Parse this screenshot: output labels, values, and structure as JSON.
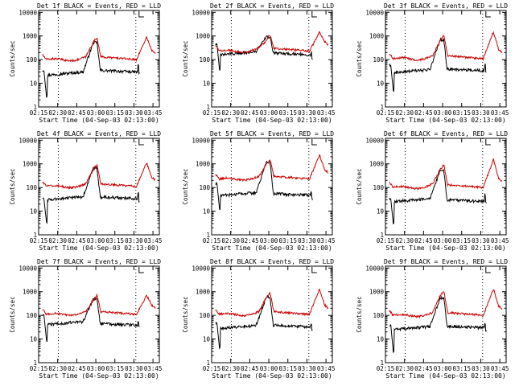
{
  "chart_data": [
    {
      "type": "line",
      "title": "Det 1f BLACK = Events, RED = LLD",
      "xlabel": "Start Time (04-Sep-03 02:13:00)",
      "ylabel": "Counts/sec",
      "xlim": [
        15,
        110
      ],
      "ylim": [
        1,
        12000
      ],
      "yscale": "log",
      "x_ticks": [
        15,
        30,
        45,
        60,
        75,
        90,
        105
      ],
      "x_tick_labels": [
        "02:15",
        "02:30",
        "02:45",
        "03:00",
        "03:15",
        "03:30",
        "03:45"
      ],
      "y_ticks": [
        1,
        10,
        100,
        1000,
        10000
      ],
      "y_tick_labels": [
        "1",
        "10",
        "100",
        "1000",
        "10000"
      ],
      "markers": [
        30.5,
        91.5
      ],
      "series": [
        {
          "name": "Events",
          "color": "#000000",
          "params": {
            "base": 35,
            "pre": 22,
            "dip": 3,
            "flare": 520,
            "endv": 55
          }
        },
        {
          "name": "LLD",
          "color": "#cc0000",
          "params": {
            "base": 100,
            "pre": 130,
            "flare": 850,
            "peak": 900
          }
        }
      ]
    },
    {
      "type": "line",
      "title": "Det 2f BLACK = Events, RED = LLD",
      "xlabel": "Start Time (04-Sep-03 02:13:00)",
      "ylabel": "Counts/sec",
      "xlim": [
        15,
        110
      ],
      "ylim": [
        1,
        12000
      ],
      "yscale": "log",
      "x_ticks": [
        15,
        30,
        45,
        60,
        75,
        90,
        105
      ],
      "x_tick_labels": [
        "02:15",
        "02:30",
        "02:45",
        "03:00",
        "03:15",
        "03:30",
        "03:45"
      ],
      "y_ticks": [
        1,
        10,
        100,
        1000,
        10000
      ],
      "y_tick_labels": [
        "1",
        "10",
        "100",
        "1000",
        "10000"
      ],
      "markers": [
        30.5,
        91.5
      ],
      "series": [
        {
          "name": "Events",
          "color": "#000000",
          "params": {
            "base": 190,
            "pre": 160,
            "dip": 35,
            "flare": 900,
            "endv": 200
          }
        },
        {
          "name": "LLD",
          "color": "#cc0000",
          "params": {
            "base": 230,
            "pre": 320,
            "flare": 1100,
            "peak": 1500
          }
        }
      ]
    },
    {
      "type": "line",
      "title": "Det 3f BLACK = Events, RED = LLD",
      "xlabel": "Start Time (04-Sep-03 02:13:00)",
      "ylabel": "Counts/sec",
      "xlim": [
        15,
        110
      ],
      "ylim": [
        1,
        12000
      ],
      "yscale": "log",
      "x_ticks": [
        15,
        30,
        45,
        60,
        75,
        90,
        105
      ],
      "x_tick_labels": [
        "02:15",
        "02:30",
        "02:45",
        "03:00",
        "03:15",
        "03:30",
        "03:45"
      ],
      "y_ticks": [
        1,
        10,
        100,
        1000,
        10000
      ],
      "y_tick_labels": [
        "1",
        "10",
        "100",
        "1000",
        "10000"
      ],
      "markers": [
        30.5,
        91.5
      ],
      "series": [
        {
          "name": "Events",
          "color": "#000000",
          "params": {
            "base": 40,
            "pre": 28,
            "dip": 5,
            "flare": 700,
            "endv": 60
          }
        },
        {
          "name": "LLD",
          "color": "#cc0000",
          "params": {
            "base": 110,
            "pre": 140,
            "flare": 1000,
            "peak": 1500
          }
        }
      ]
    },
    {
      "type": "line",
      "title": "Det 4f BLACK = Events, RED = LLD",
      "xlabel": "Start Time (04-Sep-03 02:13:00)",
      "ylabel": "Counts/sec",
      "xlim": [
        15,
        110
      ],
      "ylim": [
        1,
        12000
      ],
      "yscale": "log",
      "x_ticks": [
        15,
        30,
        45,
        60,
        75,
        90,
        105
      ],
      "x_tick_labels": [
        "02:15",
        "02:30",
        "02:45",
        "03:00",
        "03:15",
        "03:30",
        "03:45"
      ],
      "y_ticks": [
        1,
        10,
        100,
        1000,
        10000
      ],
      "y_tick_labels": [
        "1",
        "10",
        "100",
        "1000",
        "10000"
      ],
      "markers": [
        30.5,
        91.5
      ],
      "series": [
        {
          "name": "Events",
          "color": "#000000",
          "params": {
            "base": 40,
            "pre": 30,
            "dip": 3,
            "flare": 650,
            "endv": 55
          }
        },
        {
          "name": "LLD",
          "color": "#cc0000",
          "params": {
            "base": 110,
            "pre": 140,
            "flare": 900,
            "peak": 1100
          }
        }
      ]
    },
    {
      "type": "line",
      "title": "Det 5f BLACK = Events, RED = LLD",
      "xlabel": "Start Time (04-Sep-03 02:13:00)",
      "ylabel": "Counts/sec",
      "xlim": [
        15,
        110
      ],
      "ylim": [
        1,
        12000
      ],
      "yscale": "log",
      "x_ticks": [
        15,
        30,
        45,
        60,
        75,
        90,
        105
      ],
      "x_tick_labels": [
        "02:15",
        "02:30",
        "02:45",
        "03:00",
        "03:15",
        "03:30",
        "03:45"
      ],
      "y_ticks": [
        1,
        10,
        100,
        1000,
        10000
      ],
      "y_tick_labels": [
        "1",
        "10",
        "100",
        "1000",
        "10000"
      ],
      "markers": [
        30.5,
        91.5
      ],
      "series": [
        {
          "name": "Events",
          "color": "#000000",
          "params": {
            "base": 55,
            "pre": 45,
            "dip": 12,
            "flare": 1200,
            "endv": 65
          }
        },
        {
          "name": "LLD",
          "color": "#cc0000",
          "params": {
            "base": 230,
            "pre": 290,
            "flare": 1500,
            "peak": 2300
          }
        }
      ]
    },
    {
      "type": "line",
      "title": "Det 6f BLACK = Events, RED = LLD",
      "xlabel": "Start Time (04-Sep-03 02:13:00)",
      "ylabel": "Counts/sec",
      "xlim": [
        15,
        110
      ],
      "ylim": [
        1,
        12000
      ],
      "yscale": "log",
      "x_ticks": [
        15,
        30,
        45,
        60,
        75,
        90,
        105
      ],
      "x_tick_labels": [
        "02:15",
        "02:30",
        "02:45",
        "03:00",
        "03:15",
        "03:30",
        "03:45"
      ],
      "y_ticks": [
        1,
        10,
        100,
        1000,
        10000
      ],
      "y_tick_labels": [
        "1",
        "10",
        "100",
        "1000",
        "10000"
      ],
      "markers": [
        30.5,
        91.5
      ],
      "series": [
        {
          "name": "Events",
          "color": "#000000",
          "params": {
            "base": 30,
            "pre": 25,
            "dip": 3,
            "flare": 500,
            "endv": 50
          }
        },
        {
          "name": "LLD",
          "color": "#cc0000",
          "params": {
            "base": 100,
            "pre": 140,
            "flare": 900,
            "peak": 1600
          }
        }
      ]
    },
    {
      "type": "line",
      "title": "Det 7f BLACK = Events, RED = LLD",
      "xlabel": "Start Time (04-Sep-03 02:13:00)",
      "ylabel": "Counts/sec",
      "xlim": [
        15,
        110
      ],
      "ylim": [
        1,
        12000
      ],
      "yscale": "log",
      "x_ticks": [
        15,
        30,
        45,
        60,
        75,
        90,
        105
      ],
      "x_tick_labels": [
        "02:15",
        "02:30",
        "02:45",
        "03:00",
        "03:15",
        "03:30",
        "03:45"
      ],
      "y_ticks": [
        1,
        10,
        100,
        1000,
        10000
      ],
      "y_tick_labels": [
        "1",
        "10",
        "100",
        "1000",
        "10000"
      ],
      "markers": [
        30.5,
        91.5
      ],
      "series": [
        {
          "name": "Events",
          "color": "#000000",
          "params": {
            "base": 45,
            "pre": 40,
            "dip": 8,
            "flare": 500,
            "endv": 60
          }
        },
        {
          "name": "LLD",
          "color": "#cc0000",
          "params": {
            "base": 110,
            "pre": 140,
            "flare": 700,
            "peak": 700
          }
        }
      ]
    },
    {
      "type": "line",
      "title": "Det 8f BLACK = Events, RED = LLD",
      "xlabel": "Start Time (04-Sep-03 02:13:00)",
      "ylabel": "Counts/sec",
      "xlim": [
        15,
        110
      ],
      "ylim": [
        1,
        12000
      ],
      "yscale": "log",
      "x_ticks": [
        15,
        30,
        45,
        60,
        75,
        90,
        105
      ],
      "x_tick_labels": [
        "02:15",
        "02:30",
        "02:45",
        "03:00",
        "03:15",
        "03:30",
        "03:45"
      ],
      "y_ticks": [
        1,
        10,
        100,
        1000,
        10000
      ],
      "y_tick_labels": [
        "1",
        "10",
        "100",
        "1000",
        "10000"
      ],
      "markers": [
        30.5,
        91.5
      ],
      "series": [
        {
          "name": "Events",
          "color": "#000000",
          "params": {
            "base": 38,
            "pre": 28,
            "dip": 4,
            "flare": 600,
            "endv": 45
          }
        },
        {
          "name": "LLD",
          "color": "#cc0000",
          "params": {
            "base": 110,
            "pre": 140,
            "flare": 900,
            "peak": 1300
          }
        }
      ]
    },
    {
      "type": "line",
      "title": "Det 9f BLACK = Events, RED = LLD",
      "xlabel": "Start Time (04-Sep-03 02:13:00)",
      "ylabel": "Counts/sec",
      "xlim": [
        15,
        110
      ],
      "ylim": [
        1,
        12000
      ],
      "yscale": "log",
      "x_ticks": [
        15,
        30,
        45,
        60,
        75,
        90,
        105
      ],
      "x_tick_labels": [
        "02:15",
        "02:30",
        "02:45",
        "03:00",
        "03:15",
        "03:30",
        "03:45"
      ],
      "y_ticks": [
        1,
        10,
        100,
        1000,
        10000
      ],
      "y_tick_labels": [
        "1",
        "10",
        "100",
        "1000",
        "10000"
      ],
      "markers": [
        30.5,
        91.5
      ],
      "series": [
        {
          "name": "Events",
          "color": "#000000",
          "params": {
            "base": 35,
            "pre": 25,
            "dip": 3,
            "flare": 550,
            "endv": 45
          }
        },
        {
          "name": "LLD",
          "color": "#cc0000",
          "params": {
            "base": 100,
            "pre": 130,
            "flare": 1000,
            "peak": 1300
          }
        }
      ]
    }
  ]
}
